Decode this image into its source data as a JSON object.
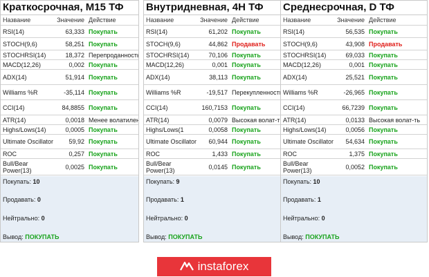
{
  "headers": {
    "name": "Название",
    "value": "Значение",
    "action": "Действие"
  },
  "columns": [
    {
      "title": "Краткосрочная, M15 ТФ",
      "rows": [
        {
          "name": "RSI(14)",
          "value": "63,333",
          "action": "Покупать",
          "kind": "buy"
        },
        {
          "name": "STOCH(9,6)",
          "value": "58,251",
          "action": "Покупать",
          "kind": "buy"
        },
        {
          "name": "STOCHRSI(14)",
          "value": "18,372",
          "action": "Перепроданность",
          "kind": "neutral"
        },
        {
          "name": "MACD(12,26)",
          "value": "0,002",
          "action": "Покупать",
          "kind": "buy"
        },
        {
          "name": "ADX(14)",
          "value": "51,914",
          "action": "Покупать",
          "kind": "buy"
        },
        {
          "name": "Williams %R",
          "value": "-35,114",
          "action": "Покупать",
          "kind": "buy"
        },
        {
          "name": "CCI(14)",
          "value": "84,8855",
          "action": "Покупать",
          "kind": "buy"
        },
        {
          "name": "ATR(14)",
          "value": "0,0018",
          "action": "Менее волатилен",
          "kind": "neutral"
        },
        {
          "name": "Highs/Lows(14)",
          "value": "0,0005",
          "action": "Покупать",
          "kind": "buy"
        },
        {
          "name": "Ultimate Oscillator",
          "value": "59,92",
          "action": "Покупать",
          "kind": "buy"
        },
        {
          "name": "ROC",
          "value": "0,257",
          "action": "Покупать",
          "kind": "buy"
        },
        {
          "name": "Bull/Bear Power(13)",
          "value": "0,0025",
          "action": "Покупать",
          "kind": "buy"
        }
      ],
      "summary": {
        "buy_label": "Покупать:",
        "buy": "10",
        "sell_label": "Продавать:",
        "sell": "0",
        "neutral_label": "Нейтрально:",
        "neutral": "0",
        "verdict_label": "Вывод:",
        "verdict": "ПОКУПАТЬ"
      }
    },
    {
      "title": "Внутридневная, 4H ТФ",
      "rows": [
        {
          "name": "RSI(14)",
          "value": "61,202",
          "action": "Покупать",
          "kind": "buy"
        },
        {
          "name": "STOCH(9,6)",
          "value": "44,862",
          "action": "Продавать",
          "kind": "sell"
        },
        {
          "name": "STOCHRSI(14)",
          "value": "70,106",
          "action": "Покупать",
          "kind": "buy"
        },
        {
          "name": "MACD(12,26)",
          "value": "0,001",
          "action": "Покупать",
          "kind": "buy"
        },
        {
          "name": "ADX(14)",
          "value": "38,113",
          "action": "Покупать",
          "kind": "buy"
        },
        {
          "name": "Williams %R",
          "value": "-19,517",
          "action": "Перекупленность",
          "kind": "neutral"
        },
        {
          "name": "CCI(14)",
          "value": "160,7153",
          "action": "Покупать",
          "kind": "buy"
        },
        {
          "name": "ATR(14)",
          "value": "0,0079",
          "action": "Высокая волат-ть",
          "kind": "neutral"
        },
        {
          "name": "Highs/Lows(1",
          "value": "0,0058",
          "action": "Покупать",
          "kind": "buy"
        },
        {
          "name": "Ultimate Oscillator",
          "value": "60,944",
          "action": "Покупать",
          "kind": "buy"
        },
        {
          "name": "ROC",
          "value": "1,433",
          "action": "Покупать",
          "kind": "buy"
        },
        {
          "name": "Bull/Bear Power(13)",
          "value": "0,0145",
          "action": "Покупать",
          "kind": "buy"
        }
      ],
      "summary": {
        "buy_label": "Покупать:",
        "buy": "9",
        "sell_label": "Продавать:",
        "sell": "1",
        "neutral_label": "Нейтрально:",
        "neutral": "0",
        "verdict_label": "Вывод:",
        "verdict": "ПОКУПАТЬ"
      }
    },
    {
      "title": "Среднесрочная, D ТФ",
      "rows": [
        {
          "name": "RSI(14)",
          "value": "56,535",
          "action": "Покупать",
          "kind": "buy"
        },
        {
          "name": "STOCH(9,6)",
          "value": "43,908",
          "action": "Продавать",
          "kind": "sell"
        },
        {
          "name": "STOCHRSI(14)",
          "value": "69,033",
          "action": "Покупать",
          "kind": "buy"
        },
        {
          "name": "MACD(12,26)",
          "value": "0,001",
          "action": "Покупать",
          "kind": "buy"
        },
        {
          "name": "ADX(14)",
          "value": "25,521",
          "action": "Покупать",
          "kind": "buy"
        },
        {
          "name": "Williams %R",
          "value": "-26,965",
          "action": "Покупать",
          "kind": "buy"
        },
        {
          "name": "CCI(14)",
          "value": "66,7239",
          "action": "Покупать",
          "kind": "buy"
        },
        {
          "name": "ATR(14)",
          "value": "0,0133",
          "action": "Высокая волат-ть",
          "kind": "neutral"
        },
        {
          "name": "Highs/Lows(14)",
          "value": "0,0056",
          "action": "Покупать",
          "kind": "buy"
        },
        {
          "name": "Ultimate Oscillator",
          "value": "54,634",
          "action": "Покупать",
          "kind": "buy"
        },
        {
          "name": "ROC",
          "value": "1,375",
          "action": "Покупать",
          "kind": "buy"
        },
        {
          "name": "Bull/Bear Power(13)",
          "value": "0,0052",
          "action": "Покупать",
          "kind": "buy"
        }
      ],
      "summary": {
        "buy_label": "Покупать:",
        "buy": "10",
        "sell_label": "Продавать:",
        "sell": "1",
        "neutral_label": "Нейтрально:",
        "neutral": "0",
        "verdict_label": "Вывод:",
        "verdict": "ПОКУПАТЬ"
      }
    }
  ],
  "brand": {
    "name": "instaforex",
    "color": "#e8353a"
  },
  "colors": {
    "buy": "#19a31c",
    "sell": "#e0201b",
    "summary_bg": "#e7eef6"
  }
}
